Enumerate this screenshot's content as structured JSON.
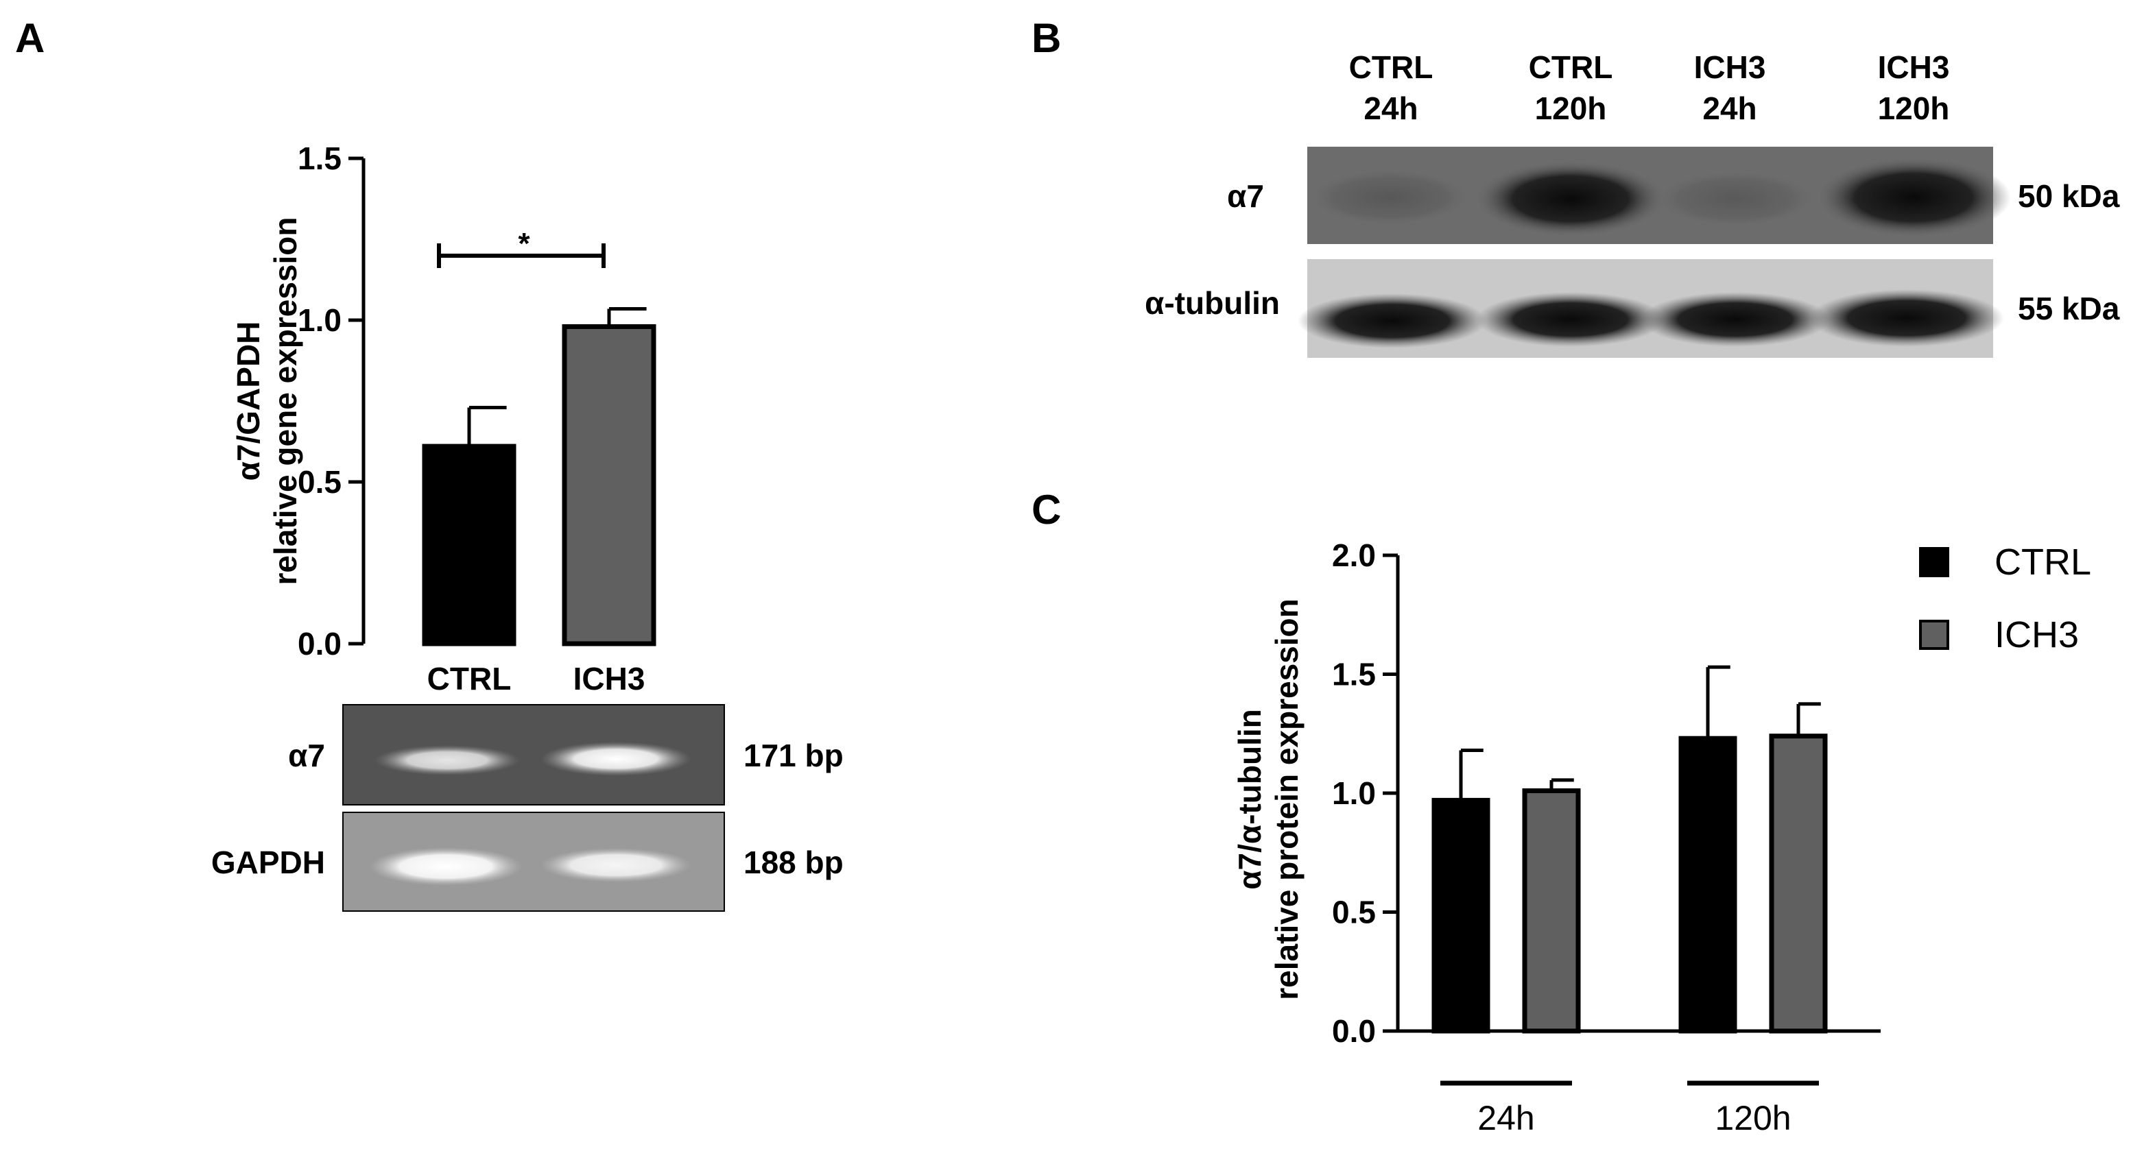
{
  "panel_labels": [
    "A",
    "B",
    "C"
  ],
  "chart_data": [
    {
      "id": "A",
      "type": "bar",
      "categories": [
        "CTRL",
        "ICH3"
      ],
      "values": [
        0.61,
        0.98
      ],
      "errors": [
        0.12,
        0.055
      ],
      "colors": [
        "#000000",
        "#606060"
      ],
      "ylabel_lines": [
        "α7/GAPDH",
        "relative gene expression"
      ],
      "yticks": [
        "0.0",
        "0.5",
        "1.0",
        "1.5"
      ],
      "ylim": [
        0,
        1.5
      ],
      "significance": {
        "between": [
          "CTRL",
          "ICH3"
        ],
        "label": "*"
      }
    },
    {
      "id": "C",
      "type": "bar",
      "groups": [
        "24h",
        "120h"
      ],
      "series": [
        {
          "name": "CTRL",
          "values": [
            0.97,
            1.23
          ],
          "errors": [
            0.21,
            0.3
          ],
          "color": "#000000"
        },
        {
          "name": "ICH3",
          "values": [
            1.01,
            1.24
          ],
          "errors": [
            0.045,
            0.135
          ],
          "color": "#606060"
        }
      ],
      "ylabel_lines": [
        "α7/α-tubulin",
        "relative protein expression"
      ],
      "yticks": [
        "0.0",
        "0.5",
        "1.0",
        "1.5",
        "2.0"
      ],
      "ylim": [
        0,
        2.0
      ],
      "legend_position": "top-right"
    }
  ],
  "gel_A": {
    "rows": [
      {
        "label": "α7",
        "size": "171 bp"
      },
      {
        "label": "GAPDH",
        "size": "188 bp"
      }
    ]
  },
  "blot_B": {
    "lanes": [
      {
        "line1": "CTRL",
        "line2": "24h"
      },
      {
        "line1": "CTRL",
        "line2": "120h"
      },
      {
        "line1": "ICH3",
        "line2": "24h"
      },
      {
        "line1": "ICH3",
        "line2": "120h"
      }
    ],
    "rows": [
      {
        "label": "α7",
        "size": "50 kDa"
      },
      {
        "label": "α-tubulin",
        "size": "55 kDa"
      }
    ]
  }
}
